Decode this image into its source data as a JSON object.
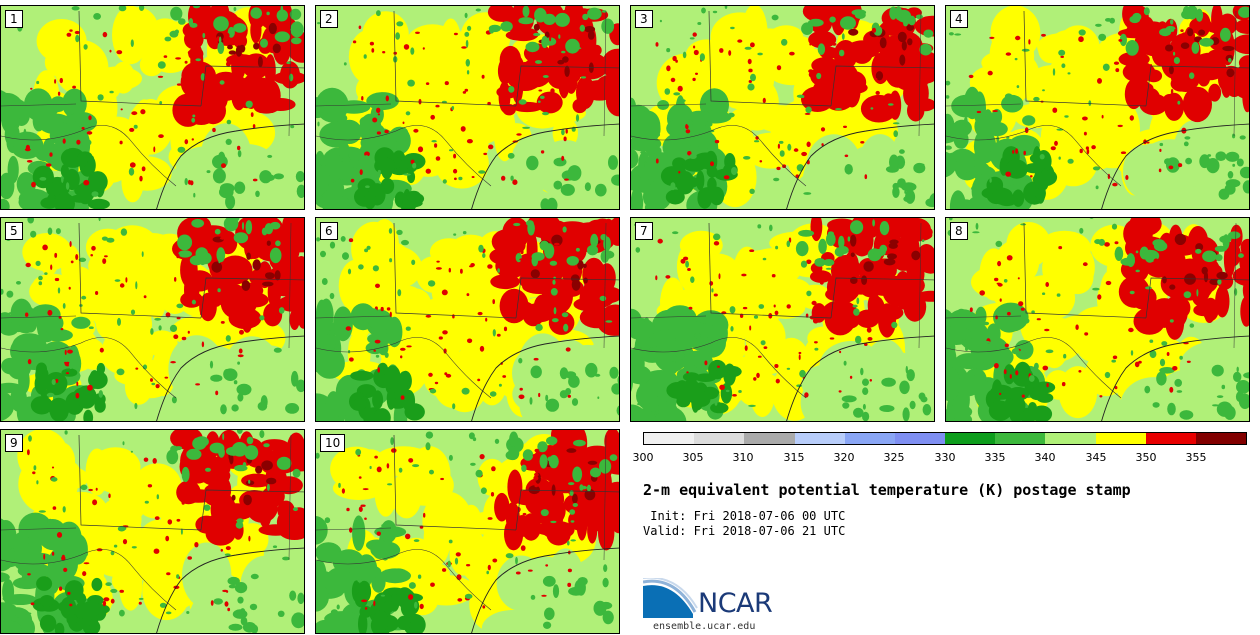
{
  "panels": [
    {
      "label": "1"
    },
    {
      "label": "2"
    },
    {
      "label": "3"
    },
    {
      "label": "4"
    },
    {
      "label": "5"
    },
    {
      "label": "6"
    },
    {
      "label": "7"
    },
    {
      "label": "8"
    },
    {
      "label": "9"
    },
    {
      "label": "10"
    }
  ],
  "map_colors": {
    "dark_green": "#1a9e1a",
    "mid_green": "#3cb83c",
    "light_green": "#b0f078",
    "yellow": "#ffff00",
    "red": "#e00000",
    "dark_red": "#8b0000",
    "border": "#333333"
  },
  "colorbar": {
    "colors": [
      "#f0f0f0",
      "#dcdcdc",
      "#aaaaaa",
      "#b8cdfa",
      "#8aa6f5",
      "#7f8ff2",
      "#0d9d1c",
      "#3cb83c",
      "#b0f078",
      "#ffff00",
      "#e80000",
      "#820000"
    ],
    "ticks": [
      "300",
      "305",
      "310",
      "315",
      "320",
      "325",
      "330",
      "335",
      "340",
      "345",
      "350",
      "355"
    ]
  },
  "title": "2-m equivalent potential temperature (K) postage stamp",
  "init": " Init: Fri 2018-07-06 00 UTC",
  "valid": "Valid: Fri 2018-07-06 21 UTC",
  "logo": {
    "text": "NCAR",
    "url": "ensemble.ucar.edu"
  }
}
